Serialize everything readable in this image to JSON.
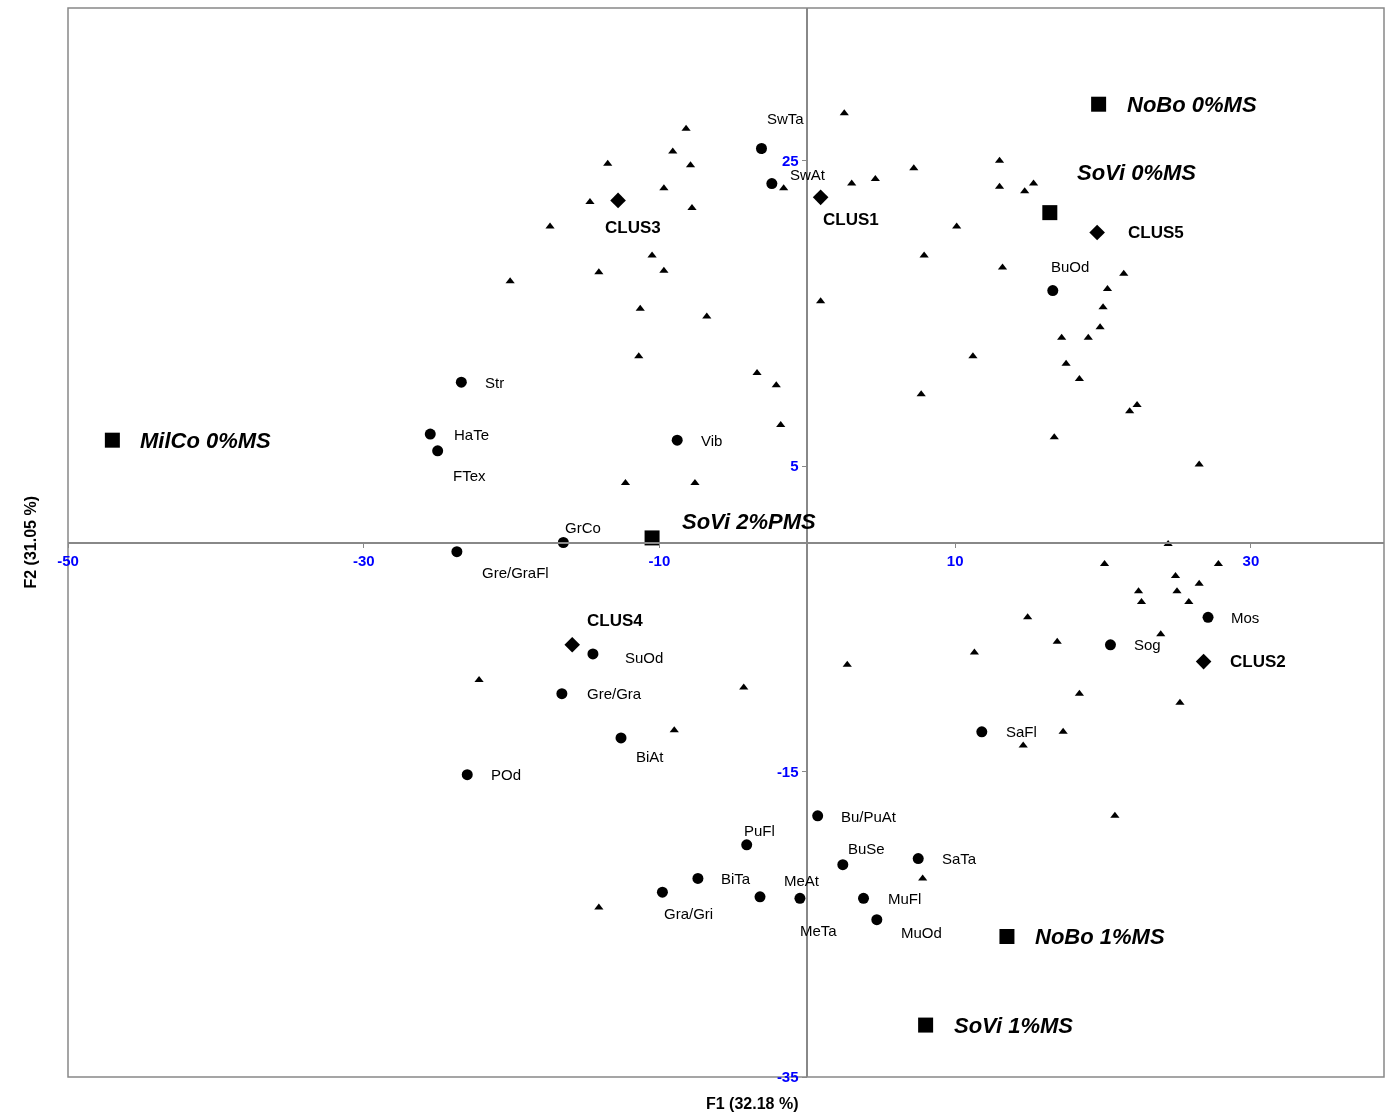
{
  "chart_data": {
    "type": "scatter",
    "xlabel": "F1 (32.18 %)",
    "ylabel": "F2 (31.05 %)",
    "xlim": [
      -50,
      39
    ],
    "ylim": [
      -35,
      35
    ],
    "xticks": [
      -50,
      -30,
      -10,
      10,
      30
    ],
    "yticks": [
      25,
      5,
      -15,
      -35
    ],
    "grid": false,
    "series": [
      {
        "color": "#000000",
        "marker": "triangle",
        "x": [
          2.5,
          -8.2,
          -13.5,
          -9.1,
          -7.9,
          7.2,
          13.0,
          -1.6,
          3.0,
          4.6,
          -9.7,
          -14.7,
          -7.8,
          13.0,
          14.7,
          15.3,
          -17.4,
          10.1,
          -10.5,
          -9.7,
          -14.1,
          7.9,
          13.2,
          -20.1,
          21.4,
          20.3,
          0.9,
          20.0,
          -11.3,
          -6.8,
          19.8,
          17.2,
          19.0,
          -11.4,
          11.2,
          17.5,
          -3.4,
          -2.1,
          18.4,
          7.7,
          22.3,
          21.8,
          -1.8,
          16.7,
          26.5,
          -12.3,
          -7.6,
          24.4,
          20.1,
          24.9,
          22.4,
          26.5,
          25.0,
          22.6,
          27.8,
          25.8,
          14.9,
          23.9,
          16.9,
          11.3,
          2.7,
          -22.2,
          -4.3,
          18.4,
          25.2,
          -9.0,
          17.3,
          14.6,
          20.8,
          7.8,
          -14.1
        ],
        "values": [
          28.1,
          27.1,
          24.8,
          25.6,
          24.7,
          24.5,
          25.0,
          23.2,
          23.5,
          23.8,
          23.2,
          22.3,
          21.9,
          23.3,
          23.0,
          23.5,
          20.7,
          20.7,
          18.8,
          17.8,
          17.7,
          18.8,
          18.0,
          17.1,
          17.6,
          16.6,
          15.8,
          15.4,
          15.3,
          14.8,
          14.1,
          13.4,
          13.4,
          12.2,
          12.2,
          11.7,
          11.1,
          10.3,
          10.7,
          9.7,
          9.0,
          8.6,
          7.7,
          6.9,
          5.1,
          3.9,
          3.9,
          -0.1,
          -1.4,
          -2.2,
          -3.2,
          -2.7,
          -3.2,
          -3.9,
          -1.4,
          -3.9,
          -4.9,
          -6.0,
          -6.5,
          -7.2,
          -8.0,
          -9.0,
          -9.5,
          -9.9,
          -10.5,
          -12.3,
          -12.4,
          -13.3,
          -17.9,
          -22.0,
          -23.9
        ]
      },
      {
        "color": "#000000",
        "marker": "circle",
        "x": [
          -3.1,
          -2.4,
          16.6,
          -23.4,
          -25.5,
          -25.0,
          -8.8,
          -16.5,
          -23.7,
          -14.5,
          -16.6,
          -12.6,
          -23.0,
          27.1,
          20.5,
          11.8,
          0.7,
          -4.1,
          2.4,
          7.5,
          -7.4,
          -3.2,
          -9.8,
          3.8,
          4.7,
          -0.5
        ],
        "values": [
          25.8,
          23.5,
          16.5,
          10.5,
          7.1,
          6.0,
          6.7,
          0.0,
          -0.6,
          -7.3,
          -9.9,
          -12.8,
          -15.2,
          -4.9,
          -6.7,
          -12.4,
          -17.9,
          -19.8,
          -21.1,
          -20.7,
          -22.0,
          -23.2,
          -22.9,
          -23.3,
          -24.7,
          -23.3
        ]
      },
      {
        "color": "#000000",
        "marker": "diamond",
        "x": [
          -12.8,
          0.9,
          19.6,
          -15.9,
          26.8
        ],
        "values": [
          22.4,
          22.6,
          20.3,
          -6.7,
          -7.8
        ]
      },
      {
        "color": "#000000",
        "marker": "square",
        "x": [
          19.7,
          16.4,
          -47.0,
          -10.5,
          13.5,
          8.0
        ],
        "values": [
          28.7,
          21.6,
          6.7,
          0.3,
          -25.8,
          -31.6
        ]
      }
    ],
    "annotations": [
      {
        "text": "SwTa",
        "x": -3.1,
        "y": 25.8
      },
      {
        "text": "SwAt",
        "x": -2.4,
        "y": 23.5
      },
      {
        "text": "BuOd",
        "x": 16.6,
        "y": 16.5
      },
      {
        "text": "Str",
        "x": -23.4,
        "y": 10.5
      },
      {
        "text": "HaTe",
        "x": -25.5,
        "y": 7.1
      },
      {
        "text": "FTex",
        "x": -25.0,
        "y": 6.0
      },
      {
        "text": "Vib",
        "x": -8.8,
        "y": 6.7
      },
      {
        "text": "GrCo",
        "x": -16.5,
        "y": 0.0
      },
      {
        "text": "Gre/GraFl",
        "x": -23.7,
        "y": -0.6
      },
      {
        "text": "SuOd",
        "x": -14.5,
        "y": -7.3
      },
      {
        "text": "Gre/Gra",
        "x": -16.6,
        "y": -9.9
      },
      {
        "text": "BiAt",
        "x": -12.6,
        "y": -12.8
      },
      {
        "text": "POd",
        "x": -23.0,
        "y": -15.2
      },
      {
        "text": "Mos",
        "x": 27.1,
        "y": -4.9
      },
      {
        "text": "Sog",
        "x": 20.5,
        "y": -6.7
      },
      {
        "text": "SaFl",
        "x": 11.8,
        "y": -12.4
      },
      {
        "text": "Bu/PuAt",
        "x": 0.7,
        "y": -17.9
      },
      {
        "text": "PuFl",
        "x": -4.1,
        "y": -19.8
      },
      {
        "text": "BuSe",
        "x": 2.4,
        "y": -21.1
      },
      {
        "text": "SaTa",
        "x": 7.5,
        "y": -20.7
      },
      {
        "text": "BiTa",
        "x": -7.4,
        "y": -22.0
      },
      {
        "text": "MeAt",
        "x": -3.2,
        "y": -23.2
      },
      {
        "text": "Gra/Gri",
        "x": -9.8,
        "y": -22.9
      },
      {
        "text": "MuFl",
        "x": 3.8,
        "y": -23.3
      },
      {
        "text": "MuOd",
        "x": 4.7,
        "y": -24.7
      },
      {
        "text": "MeTa",
        "x": -0.5,
        "y": -23.3
      },
      {
        "text": "CLUS3",
        "x": -12.8,
        "y": 22.4
      },
      {
        "text": "CLUS1",
        "x": 0.9,
        "y": 22.6
      },
      {
        "text": "CLUS5",
        "x": 19.6,
        "y": 20.3
      },
      {
        "text": "CLUS4",
        "x": -15.9,
        "y": -6.7
      },
      {
        "text": "CLUS2",
        "x": 26.8,
        "y": -7.8
      },
      {
        "text": "NoBo 0%MS",
        "x": 19.7,
        "y": 28.7
      },
      {
        "text": "SoVi 0%MS",
        "x": 16.4,
        "y": 21.6
      },
      {
        "text": "MilCo 0%MS",
        "x": -47.0,
        "y": 6.7
      },
      {
        "text": "SoVi 2%PMS",
        "x": -10.5,
        "y": 0.3
      },
      {
        "text": "NoBo 1%MS",
        "x": 13.5,
        "y": -25.8
      },
      {
        "text": "SoVi 1%MS",
        "x": 8.0,
        "y": -31.6
      }
    ]
  }
}
